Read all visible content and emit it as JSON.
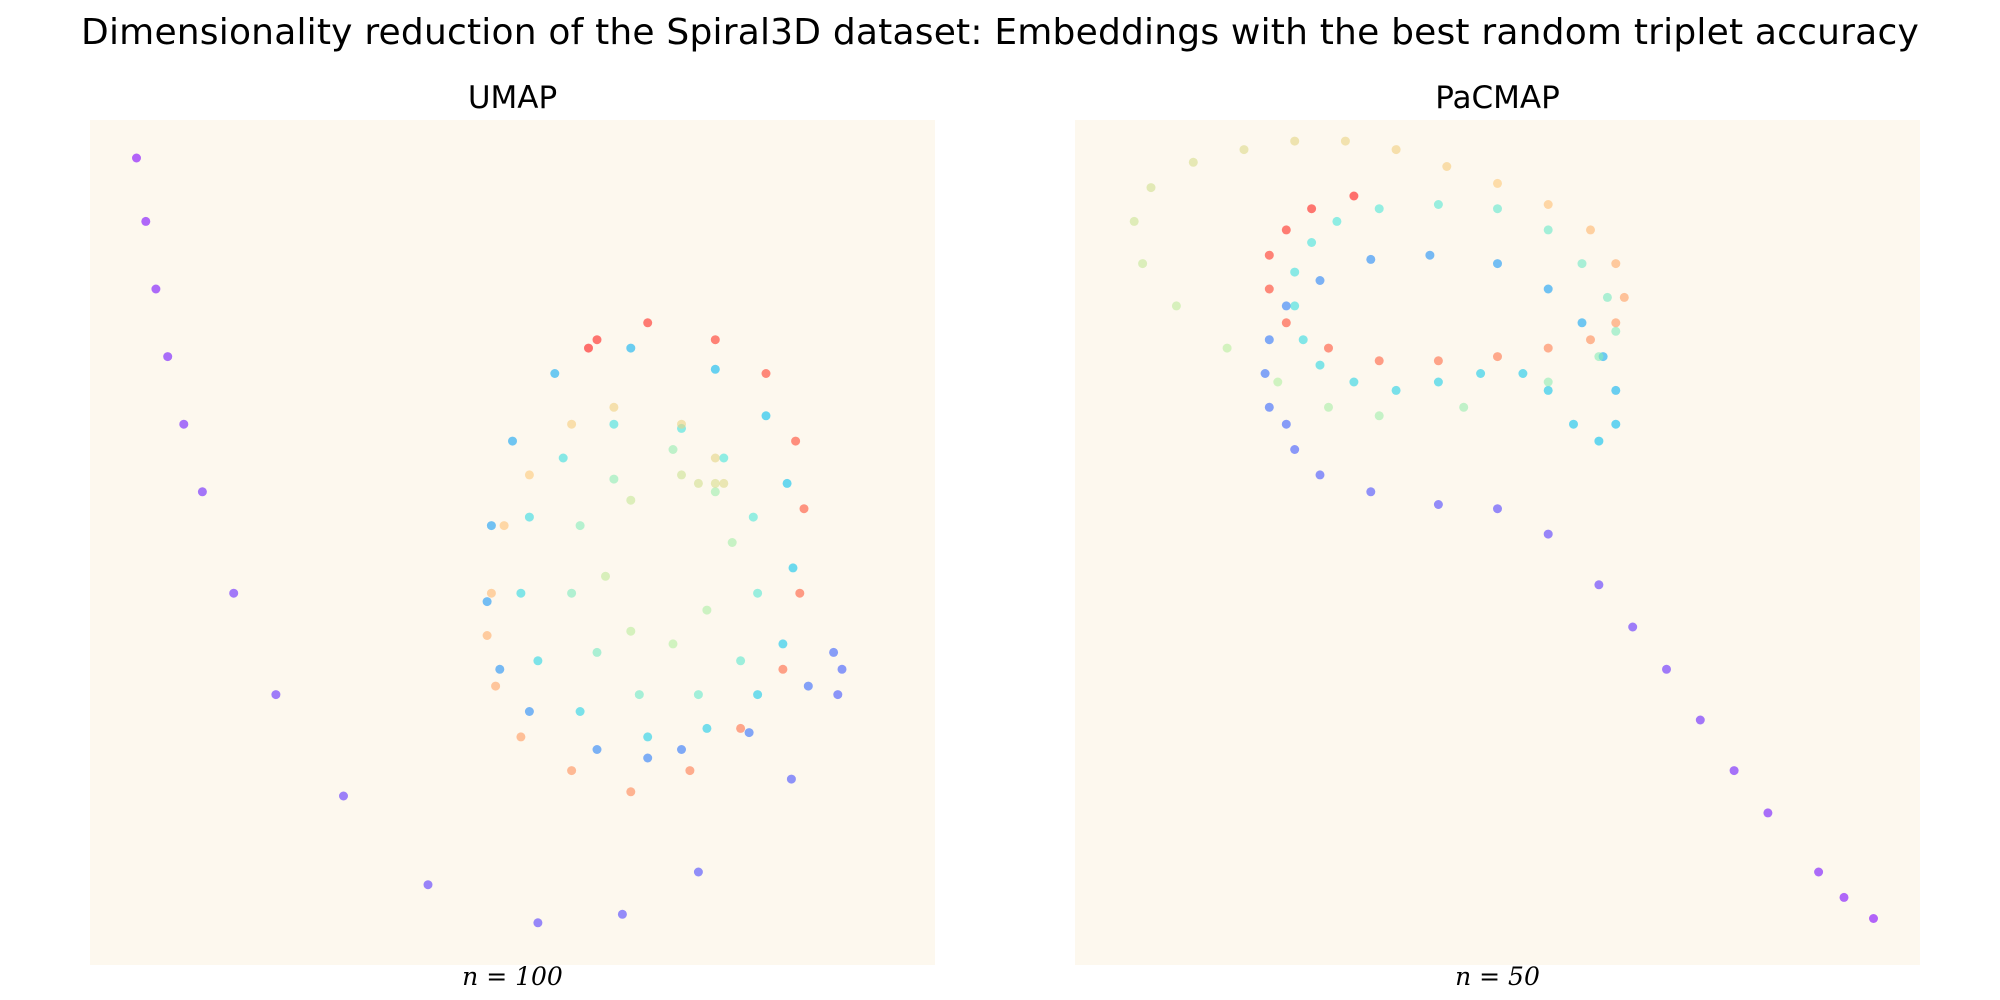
{
  "figure": {
    "title": "Dimensionality reduction of the Spiral3D dataset: Embeddings with the best random triplet accuracy",
    "background_color": "#fdf8ee",
    "marker_alpha": 0.6,
    "colormap": "rainbow"
  },
  "chart_data": [
    {
      "type": "scatter",
      "title": "UMAP",
      "note": "n = 100",
      "axes_visible": false,
      "grid": false,
      "xlim": [
        0,
        1
      ],
      "ylim": [
        0,
        1
      ],
      "color_scale": "rainbow (t = position along spiral, 0 = purple, 1 = red)",
      "approximate_trajectory_xy": [
        [
          0.055,
          0.955
        ],
        [
          0.066,
          0.88
        ],
        [
          0.078,
          0.8
        ],
        [
          0.092,
          0.72
        ],
        [
          0.111,
          0.64
        ],
        [
          0.133,
          0.56
        ],
        [
          0.17,
          0.44
        ],
        [
          0.22,
          0.32
        ],
        [
          0.3,
          0.2
        ],
        [
          0.4,
          0.095
        ],
        [
          0.53,
          0.05
        ],
        [
          0.63,
          0.06
        ],
        [
          0.72,
          0.11
        ],
        [
          0.83,
          0.22
        ],
        [
          0.885,
          0.32
        ],
        [
          0.89,
          0.35
        ],
        [
          0.88,
          0.37
        ],
        [
          0.85,
          0.33
        ],
        [
          0.78,
          0.275
        ],
        [
          0.7,
          0.255
        ],
        [
          0.66,
          0.245
        ],
        [
          0.6,
          0.255
        ],
        [
          0.52,
          0.3
        ],
        [
          0.485,
          0.35
        ],
        [
          0.47,
          0.43
        ],
        [
          0.475,
          0.52
        ],
        [
          0.5,
          0.62
        ],
        [
          0.55,
          0.7
        ],
        [
          0.64,
          0.73
        ],
        [
          0.74,
          0.705
        ],
        [
          0.8,
          0.65
        ],
        [
          0.825,
          0.57
        ],
        [
          0.832,
          0.47
        ],
        [
          0.82,
          0.38
        ],
        [
          0.79,
          0.32
        ],
        [
          0.73,
          0.28
        ],
        [
          0.66,
          0.27
        ],
        [
          0.58,
          0.3
        ],
        [
          0.53,
          0.36
        ],
        [
          0.51,
          0.44
        ],
        [
          0.52,
          0.53
        ],
        [
          0.56,
          0.6
        ],
        [
          0.62,
          0.64
        ],
        [
          0.7,
          0.635
        ],
        [
          0.75,
          0.6
        ],
        [
          0.785,
          0.53
        ],
        [
          0.79,
          0.44
        ],
        [
          0.77,
          0.36
        ],
        [
          0.72,
          0.32
        ],
        [
          0.65,
          0.32
        ],
        [
          0.6,
          0.37
        ],
        [
          0.57,
          0.44
        ],
        [
          0.58,
          0.52
        ],
        [
          0.62,
          0.575
        ],
        [
          0.69,
          0.61
        ],
        [
          0.74,
          0.56
        ],
        [
          0.76,
          0.5
        ],
        [
          0.73,
          0.42
        ],
        [
          0.69,
          0.38
        ],
        [
          0.64,
          0.395
        ],
        [
          0.61,
          0.46
        ],
        [
          0.64,
          0.55
        ],
        [
          0.7,
          0.58
        ],
        [
          0.72,
          0.57
        ],
        [
          0.74,
          0.57
        ],
        [
          0.75,
          0.57
        ],
        [
          0.74,
          0.6
        ],
        [
          0.7,
          0.64
        ],
        [
          0.62,
          0.66
        ],
        [
          0.57,
          0.64
        ],
        [
          0.52,
          0.58
        ],
        [
          0.49,
          0.52
        ],
        [
          0.475,
          0.44
        ],
        [
          0.47,
          0.39
        ],
        [
          0.48,
          0.33
        ],
        [
          0.51,
          0.27
        ],
        [
          0.57,
          0.23
        ],
        [
          0.64,
          0.205
        ],
        [
          0.71,
          0.23
        ],
        [
          0.77,
          0.28
        ],
        [
          0.82,
          0.35
        ],
        [
          0.84,
          0.44
        ],
        [
          0.845,
          0.54
        ],
        [
          0.835,
          0.62
        ],
        [
          0.8,
          0.7
        ],
        [
          0.74,
          0.74
        ],
        [
          0.66,
          0.76
        ],
        [
          0.6,
          0.74
        ],
        [
          0.59,
          0.73
        ]
      ]
    },
    {
      "type": "scatter",
      "title": "PaCMAP",
      "note": "n = 50",
      "axes_visible": false,
      "grid": false,
      "xlim": [
        0,
        1
      ],
      "ylim": [
        0,
        1
      ],
      "color_scale": "rainbow (t = position along spiral, 0 = purple, 1 = red)",
      "approximate_trajectory_xy": [
        [
          0.945,
          0.055
        ],
        [
          0.91,
          0.08
        ],
        [
          0.88,
          0.11
        ],
        [
          0.82,
          0.18
        ],
        [
          0.78,
          0.23
        ],
        [
          0.74,
          0.29
        ],
        [
          0.7,
          0.35
        ],
        [
          0.66,
          0.4
        ],
        [
          0.62,
          0.45
        ],
        [
          0.56,
          0.51
        ],
        [
          0.5,
          0.54
        ],
        [
          0.43,
          0.545
        ],
        [
          0.35,
          0.56
        ],
        [
          0.29,
          0.58
        ],
        [
          0.26,
          0.61
        ],
        [
          0.25,
          0.64
        ],
        [
          0.23,
          0.66
        ],
        [
          0.225,
          0.7
        ],
        [
          0.23,
          0.74
        ],
        [
          0.25,
          0.78
        ],
        [
          0.29,
          0.81
        ],
        [
          0.35,
          0.835
        ],
        [
          0.42,
          0.84
        ],
        [
          0.5,
          0.83
        ],
        [
          0.56,
          0.8
        ],
        [
          0.6,
          0.76
        ],
        [
          0.625,
          0.72
        ],
        [
          0.64,
          0.68
        ],
        [
          0.64,
          0.64
        ],
        [
          0.62,
          0.62
        ],
        [
          0.59,
          0.64
        ],
        [
          0.56,
          0.68
        ],
        [
          0.53,
          0.7
        ],
        [
          0.48,
          0.7
        ],
        [
          0.43,
          0.69
        ],
        [
          0.38,
          0.68
        ],
        [
          0.33,
          0.69
        ],
        [
          0.29,
          0.71
        ],
        [
          0.27,
          0.74
        ],
        [
          0.26,
          0.78
        ],
        [
          0.26,
          0.82
        ],
        [
          0.28,
          0.855
        ],
        [
          0.31,
          0.88
        ],
        [
          0.36,
          0.895
        ],
        [
          0.43,
          0.9
        ],
        [
          0.5,
          0.895
        ],
        [
          0.56,
          0.87
        ],
        [
          0.6,
          0.83
        ],
        [
          0.63,
          0.79
        ],
        [
          0.64,
          0.75
        ],
        [
          0.62,
          0.72
        ],
        [
          0.56,
          0.69
        ],
        [
          0.46,
          0.66
        ],
        [
          0.36,
          0.65
        ],
        [
          0.3,
          0.66
        ],
        [
          0.24,
          0.69
        ],
        [
          0.18,
          0.73
        ],
        [
          0.12,
          0.78
        ],
        [
          0.08,
          0.83
        ],
        [
          0.07,
          0.88
        ],
        [
          0.09,
          0.92
        ],
        [
          0.14,
          0.95
        ],
        [
          0.2,
          0.965
        ],
        [
          0.26,
          0.975
        ],
        [
          0.32,
          0.975
        ],
        [
          0.38,
          0.965
        ],
        [
          0.44,
          0.945
        ],
        [
          0.5,
          0.925
        ],
        [
          0.56,
          0.9
        ],
        [
          0.61,
          0.87
        ],
        [
          0.64,
          0.83
        ],
        [
          0.65,
          0.79
        ],
        [
          0.64,
          0.76
        ],
        [
          0.61,
          0.74
        ],
        [
          0.56,
          0.73
        ],
        [
          0.5,
          0.72
        ],
        [
          0.43,
          0.715
        ],
        [
          0.36,
          0.715
        ],
        [
          0.3,
          0.73
        ],
        [
          0.25,
          0.76
        ],
        [
          0.23,
          0.8
        ],
        [
          0.23,
          0.84
        ],
        [
          0.25,
          0.87
        ],
        [
          0.28,
          0.895
        ],
        [
          0.33,
          0.91
        ]
      ]
    }
  ]
}
